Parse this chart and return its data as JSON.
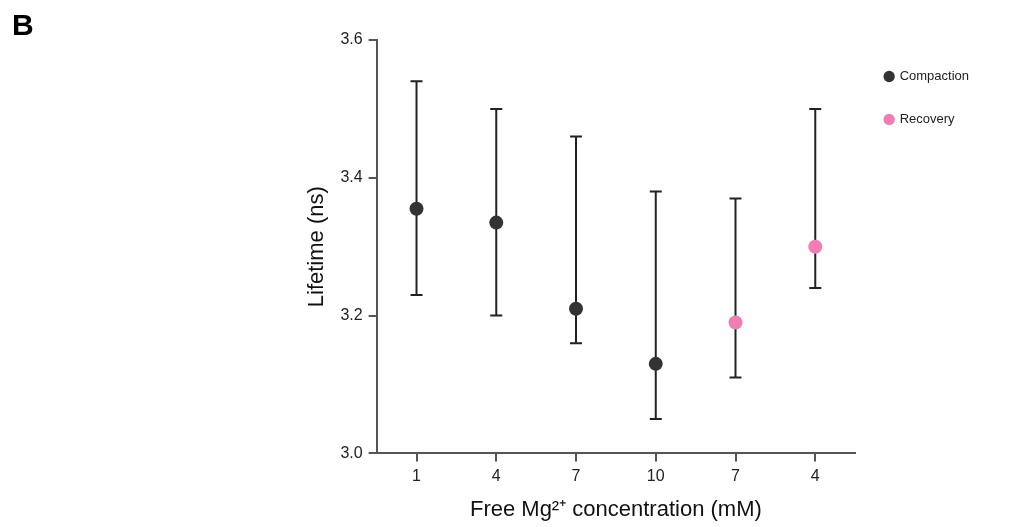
{
  "chart_data": {
    "type": "scatter",
    "xlabel": "Free Mg²⁺ concentration (mM)",
    "ylabel": "Lifetime (ns)",
    "annotations": [
      "B"
    ],
    "categories": [
      "1",
      "4",
      "7",
      "10",
      "7",
      "4"
    ],
    "series": [
      {
        "name": "Compaction",
        "color": "#333333",
        "values": [
          3.355,
          3.335,
          3.21,
          3.13,
          null,
          null
        ],
        "errors": [
          [
            3.23,
            3.54
          ],
          [
            3.2,
            3.5
          ],
          [
            3.16,
            3.46
          ],
          [
            3.05,
            3.38
          ],
          null,
          null
        ]
      },
      {
        "name": "Recovery",
        "color": "#f07eb4",
        "values": [
          null,
          null,
          null,
          null,
          3.19,
          3.3
        ],
        "errors": [
          null,
          null,
          null,
          null,
          [
            3.11,
            3.37
          ],
          [
            3.24,
            3.5
          ]
        ]
      }
    ],
    "ylim": [
      3.0,
      3.6
    ],
    "yticks": [
      {
        "value": 3.0,
        "label": "3.0"
      },
      {
        "value": 3.2,
        "label": "3.2"
      },
      {
        "value": 3.4,
        "label": "3.4"
      },
      {
        "value": 3.6,
        "label": "3.6"
      }
    ],
    "grid": false,
    "legend": "top right",
    "marker": "circle"
  }
}
